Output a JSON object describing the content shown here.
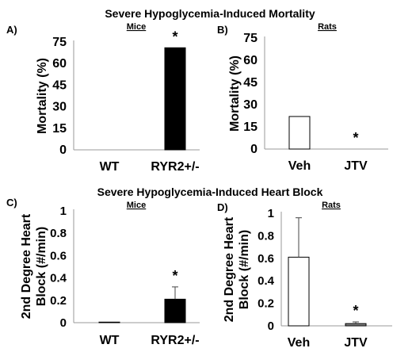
{
  "sections": [
    {
      "title": "Severe Hypoglycemia-Induced Mortality"
    },
    {
      "title": "Severe Hypoglycemia-Induced Heart Block"
    }
  ],
  "chart_data": [
    {
      "panel": "A)",
      "group": "Mice",
      "type": "bar",
      "ylabel": "Mortality (%)",
      "categories": [
        "WT",
        "RYR2+/-"
      ],
      "values": [
        0,
        71
      ],
      "errors": [
        0,
        0
      ],
      "bar_colors": [
        "#ffffff",
        "#000000"
      ],
      "significance": [
        "",
        "*"
      ],
      "yticks": [
        0,
        15,
        30,
        45,
        60,
        75
      ],
      "ylim": [
        0,
        75
      ]
    },
    {
      "panel": "B)",
      "group": "Rats",
      "type": "bar",
      "ylabel": "Mortality (%)",
      "categories": [
        "Veh",
        "JTV"
      ],
      "values": [
        22,
        0
      ],
      "errors": [
        0,
        0
      ],
      "bar_colors": [
        "#ffffff",
        "#ffffff"
      ],
      "significance": [
        "",
        "*"
      ],
      "yticks": [
        0,
        15,
        30,
        45,
        60,
        75
      ],
      "ylim": [
        0,
        75
      ]
    },
    {
      "panel": "C)",
      "group": "Mice",
      "type": "bar",
      "ylabel": [
        "2nd Degree Heart",
        "Block (#/min)"
      ],
      "categories": [
        "WT",
        "RYR2+/-"
      ],
      "values": [
        0.005,
        0.21
      ],
      "errors": [
        0,
        0.11
      ],
      "bar_colors": [
        "#ffffff",
        "#000000"
      ],
      "significance": [
        "",
        "*"
      ],
      "yticks": [
        0,
        0.2,
        0.4,
        0.6,
        0.8,
        1
      ],
      "ylim": [
        0,
        1
      ]
    },
    {
      "panel": "D)",
      "group": "Rats",
      "type": "bar",
      "ylabel": [
        "2nd Degree Heart",
        "Block (#/min)"
      ],
      "categories": [
        "Veh",
        "JTV"
      ],
      "values": [
        0.61,
        0.02
      ],
      "errors": [
        0.35,
        0.015
      ],
      "bar_colors": [
        "#ffffff",
        "#808080"
      ],
      "significance": [
        "",
        "*"
      ],
      "yticks": [
        0,
        0.2,
        0.4,
        0.6,
        0.8,
        1
      ],
      "ylim": [
        0,
        1
      ]
    }
  ]
}
